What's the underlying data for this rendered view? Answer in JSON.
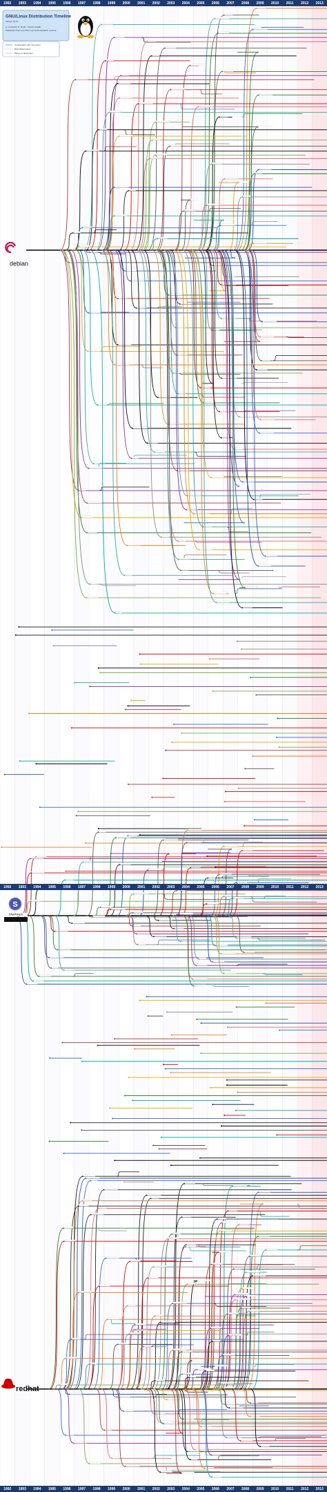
{
  "header": {
    "title": "GNU/Linux Distribution Timeline",
    "version": "Version 12.10",
    "credits": "A. Lundqvist, D. Rodic - futurist.se/gldt",
    "license": "Published under the GNU Free Documentation License"
  },
  "legend": [
    "Continuation with new name",
    "Branch/derivation",
    "Merge or absorption"
  ],
  "years": [
    1992,
    1993,
    1994,
    1995,
    1996,
    1997,
    1998,
    1999,
    2000,
    2001,
    2002,
    2003,
    2004,
    2005,
    2006,
    2007,
    2008,
    2009,
    2010,
    2011,
    2012,
    2013
  ],
  "families": {
    "debian": "debian",
    "slackware": "Slackware",
    "redhat": "redhat"
  }
}
